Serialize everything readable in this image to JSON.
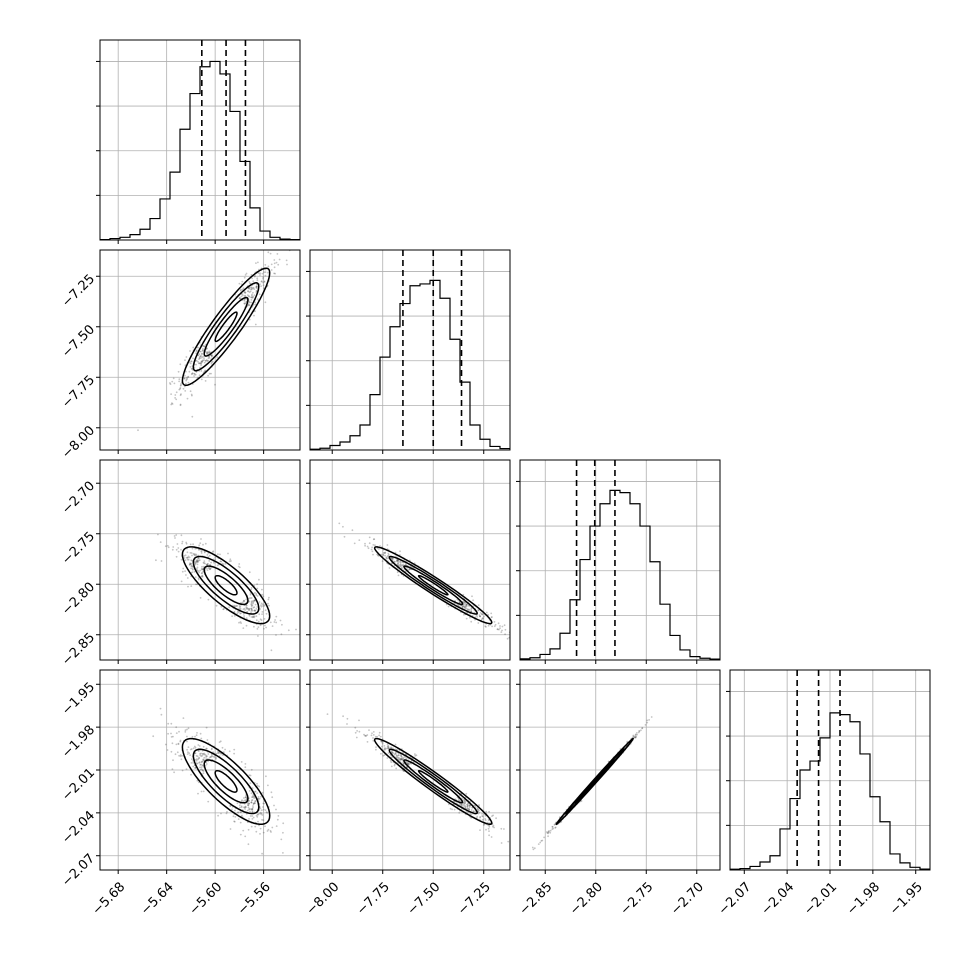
{
  "chart_data": {
    "type": "corner",
    "parameters": [
      {
        "range": [
          -5.695,
          -5.53
        ],
        "ticks": [
          -5.68,
          -5.64,
          -5.6,
          -5.56
        ],
        "tick_labels": [
          "−5.68",
          "−5.64",
          "−5.60",
          "−5.56"
        ],
        "quantiles": [
          -5.611,
          -5.591,
          -5.575
        ],
        "hist_ymax": 1000
      },
      {
        "range": [
          -8.11,
          -7.12
        ],
        "ticks": [
          -8.0,
          -7.75,
          -7.5,
          -7.25
        ],
        "tick_labels": [
          "−8.00",
          "−7.75",
          "−7.50",
          "−7.25"
        ],
        "quantiles": [
          -7.65,
          -7.5,
          -7.36
        ],
        "hist_ymax": 1000
      },
      {
        "range": [
          -2.875,
          -2.677
        ],
        "ticks": [
          -2.85,
          -2.8,
          -2.75,
          -2.7
        ],
        "tick_labels": [
          "−2.85",
          "−2.80",
          "−2.75",
          "−2.70"
        ],
        "quantiles": [
          -2.819,
          -2.801,
          -2.781
        ],
        "hist_ymax": 800
      },
      {
        "range": [
          -2.08,
          -1.94
        ],
        "ticks": [
          -2.07,
          -2.04,
          -2.01,
          -1.98,
          -1.95
        ],
        "tick_labels": [
          "−2.07",
          "−2.04",
          "−2.01",
          "−1.98",
          "−1.95"
        ],
        "quantiles": [
          -2.033,
          -2.018,
          -2.003
        ],
        "hist_ymax": 1000
      }
    ],
    "histograms": [
      [
        2,
        8,
        15,
        30,
        60,
        120,
        230,
        380,
        620,
        820,
        970,
        1000,
        930,
        720,
        440,
        180,
        50,
        15,
        5,
        2
      ],
      [
        4,
        10,
        25,
        45,
        80,
        140,
        310,
        520,
        690,
        820,
        920,
        930,
        950,
        850,
        620,
        380,
        140,
        60,
        20,
        8
      ],
      [
        5,
        10,
        25,
        50,
        120,
        270,
        450,
        600,
        700,
        760,
        750,
        700,
        600,
        440,
        250,
        110,
        45,
        15,
        8,
        4
      ],
      [
        4,
        8,
        20,
        45,
        80,
        230,
        400,
        560,
        610,
        740,
        880,
        870,
        830,
        650,
        410,
        270,
        90,
        40,
        15,
        5
      ]
    ],
    "correlations": {
      "1-0": 0.92,
      "2-0": -0.8,
      "2-1": -0.97,
      "3-0": -0.8,
      "3-1": -0.97,
      "3-2": 0.998
    },
    "contour_levels_sigma": [
      0.5,
      1.0,
      1.5,
      2.0
    ],
    "grid": true,
    "colors": {
      "points": "#555555",
      "contour_line": "#000000",
      "fill_outer": "#ffffff",
      "fill_inner": "#1a1a1a"
    }
  }
}
